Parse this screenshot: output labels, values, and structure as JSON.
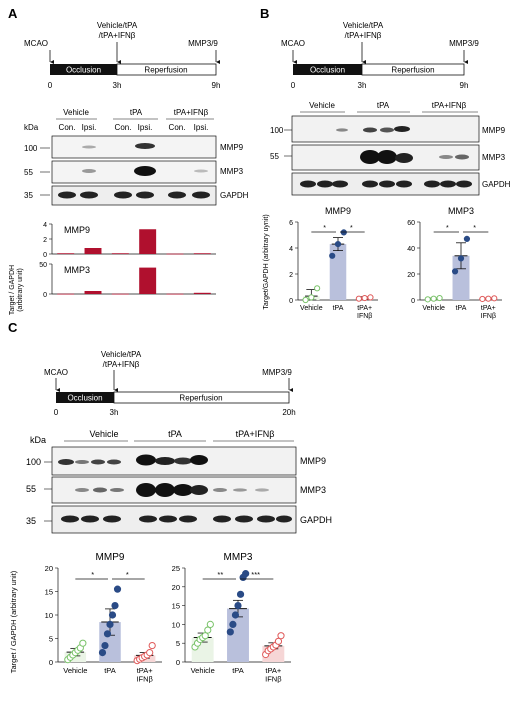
{
  "panels": {
    "A": {
      "label": "A",
      "timeline": {
        "event_start": "MCAO",
        "event_treat": [
          "Vehicle/tPA",
          "/tPA+IFNβ"
        ],
        "event_end": "MMP3/9",
        "phase1": "Occlusion",
        "phase2": "Reperfusion",
        "ticks": [
          "0",
          "3h",
          "9h"
        ]
      },
      "blot": {
        "unit": "kDa",
        "groups": [
          "Vehicle",
          "tPA",
          "tPA+IFNβ"
        ],
        "lanes": [
          "Con.",
          "Ipsi.",
          "Con.",
          "Ipsi.",
          "Con.",
          "Ipsi."
        ],
        "markers": [
          "100",
          "55",
          "35"
        ],
        "rows": [
          "MMP9",
          "MMP3",
          "GAPDH"
        ]
      },
      "ylabel": [
        "Target / GAPDH",
        "(arbitrary unit)"
      ]
    },
    "B": {
      "label": "B",
      "timeline": {
        "event_start": "MCAO",
        "event_treat": [
          "Vehicle/tPA",
          "/tPA+IFNβ"
        ],
        "event_end": "MMP3/9",
        "phase1": "Occlusion",
        "phase2": "Reperfusion",
        "ticks": [
          "0",
          "3h",
          "9h"
        ]
      },
      "blot": {
        "groups": [
          "Vehicle",
          "tPA",
          "tPA+IFNβ"
        ],
        "markers": [
          "100",
          "55"
        ],
        "rows": [
          "MMP9",
          "MMP3",
          "GAPDH"
        ]
      },
      "ylabel": "Target/GAPDH (arbitrary uynit)"
    },
    "C": {
      "label": "C",
      "timeline": {
        "event_start": "MCAO",
        "event_treat": [
          "Vehicle/tPA",
          "/tPA+IFNβ"
        ],
        "event_end": "MMP3/9",
        "phase1": "Occlusion",
        "phase2": "Reperfusion",
        "ticks": [
          "0",
          "3h",
          "20h"
        ]
      },
      "blot": {
        "unit": "kDa",
        "groups": [
          "Vehicle",
          "tPA",
          "tPA+IFNβ"
        ],
        "markers": [
          "100",
          "55",
          "35"
        ],
        "rows": [
          "MMP9",
          "MMP3",
          "GAPDH"
        ]
      },
      "ylabel": "Target / GAPDH (arbitrary unit)"
    }
  },
  "colors": {
    "bar_red": "#b0102e",
    "vehicle_green": "#7ac36a",
    "tpa_blue": "#2a4b86",
    "ifn_red": "#e05a5a",
    "bar_vehicle": "#eaf4e6",
    "bar_tpa": "#b9c0dc",
    "bar_ifn": "#f6d6d6"
  },
  "chart_data": [
    {
      "id": "A-MMP9",
      "type": "bar",
      "title": "MMP9",
      "categories": [
        "Vehicle Con.",
        "Vehicle Ipsi.",
        "tPA Con.",
        "tPA Ipsi.",
        "tPA+IFNβ Con.",
        "tPA+IFNβ Ipsi."
      ],
      "values": [
        0.1,
        0.8,
        0.1,
        3.3,
        0.05,
        0.1
      ],
      "ylim": [
        0,
        4
      ],
      "yticks": [
        "0",
        "2",
        "4"
      ]
    },
    {
      "id": "A-MMP3",
      "type": "bar",
      "title": "MMP3",
      "categories": [
        "Vehicle Con.",
        "Vehicle Ipsi.",
        "tPA Con.",
        "tPA Ipsi.",
        "tPA+IFNβ Con.",
        "tPA+IFNβ Ipsi."
      ],
      "values": [
        0.5,
        5,
        0.5,
        44,
        0.5,
        2
      ],
      "ylim": [
        0,
        50
      ],
      "yticks": [
        "0",
        "50"
      ]
    },
    {
      "id": "B-MMP9",
      "type": "bar",
      "title": "MMP9",
      "categories": [
        "Vehicle",
        "tPA",
        "tPA+\nIFNβ"
      ],
      "values": [
        0.3,
        4.3,
        0.15
      ],
      "errors": [
        0.5,
        0.5,
        0.1
      ],
      "points": [
        [
          0.0,
          0.2,
          0.9
        ],
        [
          3.4,
          4.3,
          5.2
        ],
        [
          0.1,
          0.15,
          0.2
        ]
      ],
      "ylim": [
        0,
        6
      ],
      "yticks": [
        "0",
        "2",
        "4",
        "6"
      ],
      "sig": [
        "*",
        "*"
      ]
    },
    {
      "id": "B-MMP3",
      "type": "bar",
      "title": "MMP3",
      "categories": [
        "Vehicle",
        "tPA",
        "tPA+\nIFNβ"
      ],
      "values": [
        1,
        34,
        1
      ],
      "errors": [
        0.5,
        10,
        0.5
      ],
      "points": [
        [
          0.5,
          1,
          1.5
        ],
        [
          22,
          32,
          47
        ],
        [
          0.8,
          1,
          1.3
        ]
      ],
      "ylim": [
        0,
        60
      ],
      "yticks": [
        "0",
        "20",
        "40",
        "60"
      ],
      "sig": [
        "*",
        "*"
      ]
    },
    {
      "id": "C-MMP9",
      "type": "bar",
      "title": "MMP9",
      "categories": [
        "Vehicle",
        "tPA",
        "tPA+\nIFNβ"
      ],
      "values": [
        2.1,
        8.5,
        1.4
      ],
      "errors": [
        0.8,
        2.8,
        0.6
      ],
      "points": [
        [
          0.5,
          1.0,
          1.5,
          2.0,
          2.5,
          3.0,
          4.0
        ],
        [
          2.0,
          3.5,
          6.0,
          8.0,
          10.0,
          12.0,
          15.5
        ],
        [
          0.3,
          0.6,
          0.9,
          1.2,
          1.5,
          2.0,
          3.5
        ]
      ],
      "ylim": [
        0,
        20
      ],
      "yticks": [
        "0",
        "5",
        "10",
        "15",
        "20"
      ],
      "sig": [
        "*",
        "*"
      ]
    },
    {
      "id": "C-MMP3",
      "type": "bar",
      "title": "MMP3",
      "categories": [
        "Vehicle",
        "tPA",
        "tPA+\nIFNβ"
      ],
      "values": [
        6.5,
        14.2,
        4.3
      ],
      "errors": [
        1.2,
        2.2,
        0.8
      ],
      "points": [
        [
          4.0,
          5.0,
          6.0,
          6.5,
          7.0,
          8.5,
          10.0
        ],
        [
          8.0,
          10.0,
          12.5,
          15.0,
          18.0,
          22.5,
          23.5
        ],
        [
          2.0,
          3.0,
          3.5,
          4.0,
          4.5,
          5.5,
          7.0
        ]
      ],
      "ylim": [
        0,
        25
      ],
      "yticks": [
        "0",
        "5",
        "10",
        "15",
        "20",
        "25"
      ],
      "sig": [
        "**",
        "***"
      ]
    }
  ]
}
